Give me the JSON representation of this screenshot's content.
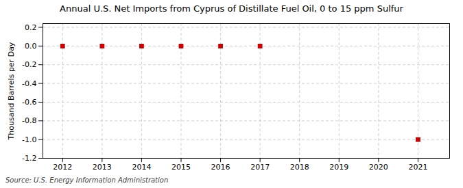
{
  "chart_data": {
    "type": "scatter",
    "title": "Annual U.S. Net Imports from Cyprus of Distillate Fuel Oil, 0 to 15 ppm Sulfur",
    "ylabel": "Thousand Barrels per Day",
    "source": "Source: U.S. Energy Information Administration",
    "x": [
      2012,
      2013,
      2014,
      2015,
      2016,
      2017,
      2018,
      2019,
      2020,
      2021
    ],
    "values": [
      0,
      0,
      0,
      0,
      0,
      0,
      null,
      null,
      null,
      -1.0
    ],
    "color": "#cc0000",
    "marker": "square",
    "xlim": [
      2011.5,
      2021.8
    ],
    "ylim": [
      -1.2,
      0.24
    ],
    "xticks": [
      2012,
      2013,
      2014,
      2015,
      2016,
      2017,
      2018,
      2019,
      2020,
      2021
    ],
    "yticks": [
      0.2,
      {
        "value": 0,
        "label": "0.0"
      },
      -0.2,
      -0.4,
      -0.6,
      -0.8,
      {
        "value": -1,
        "label": "-1.0"
      },
      -1.2
    ],
    "grid": true
  }
}
